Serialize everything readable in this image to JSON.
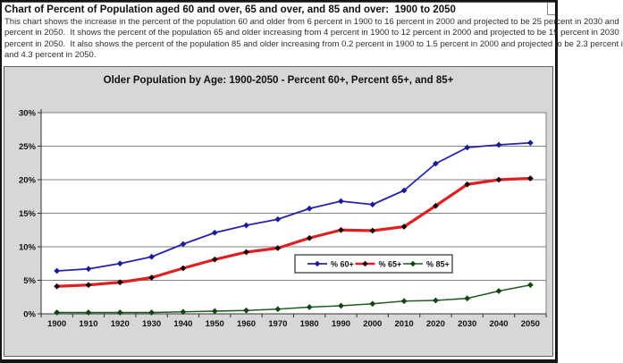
{
  "header": {
    "title": "Chart of Percent of Population aged 60 and over, 65 and over, and 85 and over:  1900 to 2050",
    "description_lines": [
      "This chart shows the increase in the percent of the population 60 and older from 6 percent in 1900 to 16 percent in 2000 and projected to be 25 percent in 2030 and",
      "percent in 2050.  It shows the percent of the population 65 and older increasing from 4 percent in 1900 to 12 percent in 2000 and projected to be 19 percent in 2030",
      "percent in 2050.  It also shows the percent of the population 85 and older increasing from 0.2 percent in 1900 to 1.5 percent in 2000 and projected to be 2.3 percent i",
      "and 4.3 percent in 2050."
    ]
  },
  "chart_data": {
    "type": "line",
    "title": "Older Population by Age: 1900-2050 - Percent 60+, Percent 65+, and 85+",
    "categories": [
      "1900",
      "1910",
      "1920",
      "1930",
      "1940",
      "1950",
      "1960",
      "1970",
      "1980",
      "1990",
      "2000",
      "2010",
      "2020",
      "2030",
      "2040",
      "2050"
    ],
    "series": [
      {
        "id": "pct-60-plus",
        "name": "% 60+",
        "color": "#2424aa",
        "marker_color": "#1c1c96",
        "line_width": 1.8,
        "values": [
          6.4,
          6.7,
          7.5,
          8.5,
          10.4,
          12.1,
          13.2,
          14.1,
          15.7,
          16.8,
          16.3,
          18.4,
          22.4,
          24.8,
          25.2,
          25.5
        ]
      },
      {
        "id": "pct-65-plus",
        "name": "% 65+",
        "color": "#e02020",
        "marker_color": "#1e0202",
        "line_width": 3.2,
        "values": [
          4.1,
          4.3,
          4.7,
          5.4,
          6.8,
          8.1,
          9.2,
          9.8,
          11.3,
          12.5,
          12.4,
          13.0,
          16.1,
          19.3,
          20.0,
          20.2
        ]
      },
      {
        "id": "pct-85-plus",
        "name": "% 85+",
        "color": "#1c5c1c",
        "marker_color": "#134413",
        "line_width": 1.6,
        "values": [
          0.2,
          0.2,
          0.2,
          0.2,
          0.3,
          0.4,
          0.5,
          0.7,
          1.0,
          1.2,
          1.5,
          1.9,
          2.0,
          2.3,
          3.4,
          4.3
        ]
      }
    ],
    "ylim": [
      0,
      30
    ],
    "ytick_step": 5,
    "ytick_suffix": "%",
    "grid": true,
    "legend_position": "inside-bottom-center",
    "marker_shape": "diamond"
  },
  "colors": {
    "chart_background": "#d7d7d7",
    "plot_background": "#ffffff",
    "gridline": "#808080",
    "axis": "#303030",
    "label_text": "#111111",
    "legend_border": "#4a4a4a",
    "legend_background": "#ffffff"
  }
}
